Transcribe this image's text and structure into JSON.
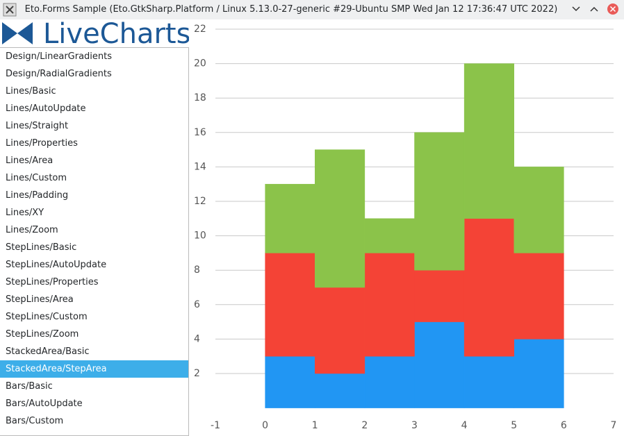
{
  "window": {
    "title": "Eto.Forms Sample (Eto.GtkSharp.Platform / Linux 5.13.0-27-generic #29-Ubuntu SMP Wed Jan 12 17:36:47 UTC 2022)"
  },
  "sidebar": {
    "logo": "LiveCharts",
    "items": [
      "Design/LinearGradients",
      "Design/RadialGradients",
      "Lines/Basic",
      "Lines/AutoUpdate",
      "Lines/Straight",
      "Lines/Properties",
      "Lines/Area",
      "Lines/Custom",
      "Lines/Padding",
      "Lines/XY",
      "Lines/Zoom",
      "StepLines/Basic",
      "StepLines/AutoUpdate",
      "StepLines/Properties",
      "StepLines/Area",
      "StepLines/Custom",
      "StepLines/Zoom",
      "StackedArea/Basic",
      "StackedArea/StepArea",
      "Bars/Basic",
      "Bars/AutoUpdate",
      "Bars/Custom"
    ]
  },
  "chart_data": {
    "type": "stacked-step-area",
    "x": [
      0,
      1,
      2,
      3,
      4,
      5
    ],
    "series": [
      {
        "color": "#2196f3",
        "values": [
          3,
          2,
          3,
          5,
          3,
          4
        ]
      },
      {
        "color": "#f44336",
        "values": [
          6,
          5,
          6,
          3,
          8,
          5
        ]
      },
      {
        "color": "#8bc34a",
        "values": [
          4,
          8,
          2,
          8,
          9,
          5
        ]
      }
    ],
    "xlim": [
      -1,
      7
    ],
    "xticks": [
      -1,
      0,
      1,
      2,
      3,
      4,
      5,
      6,
      7
    ],
    "ylim": [
      -0.5,
      22
    ],
    "yticks": [
      2,
      4,
      6,
      8,
      10,
      12,
      14,
      16,
      18,
      20,
      22
    ],
    "grid": true
  }
}
